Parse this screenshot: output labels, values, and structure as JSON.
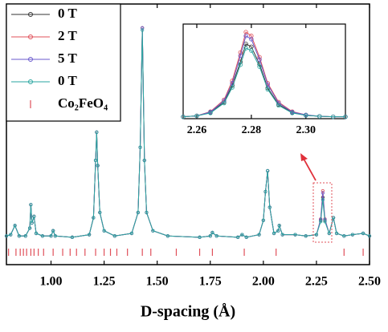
{
  "chart_data": [
    {
      "type": "line",
      "xlabel": "D-spacing (Å)",
      "xlim": [
        0.79,
        2.5
      ],
      "ylim": [
        0,
        100
      ],
      "xticks": [
        {
          "value": 1.0,
          "label": "1.00"
        },
        {
          "value": 1.25,
          "label": "1.25"
        },
        {
          "value": 1.5,
          "label": "1.50"
        },
        {
          "value": 1.75,
          "label": "1.75"
        },
        {
          "value": 2.0,
          "label": "2.00"
        },
        {
          "value": 2.25,
          "label": "2.25"
        },
        {
          "value": 2.5,
          "label": "2.50"
        }
      ],
      "legend": "upper left",
      "x": [
        0.79,
        0.81,
        0.83,
        0.85,
        0.88,
        0.9,
        0.905,
        0.91,
        0.92,
        0.93,
        0.96,
        1.0,
        1.01,
        1.02,
        1.1,
        1.18,
        1.2,
        1.21,
        1.215,
        1.22,
        1.23,
        1.25,
        1.3,
        1.38,
        1.41,
        1.42,
        1.43,
        1.44,
        1.45,
        1.48,
        1.55,
        1.7,
        1.75,
        1.76,
        1.78,
        1.88,
        1.9,
        1.92,
        1.98,
        2.0,
        2.01,
        2.02,
        2.03,
        2.05,
        2.07,
        2.075,
        2.09,
        2.15,
        2.2,
        2.25,
        2.27,
        2.28,
        2.29,
        2.31,
        2.33,
        2.345,
        2.38,
        2.42,
        2.47,
        2.5
      ],
      "series": [
        {
          "name": "0 T",
          "color": "#333333",
          "values": [
            11,
            11.5,
            15,
            11,
            11,
            14,
            23,
            16,
            18.5,
            12,
            11,
            11,
            13,
            11,
            10.5,
            11.5,
            18,
            40,
            50.8,
            38,
            20,
            13,
            11,
            12,
            20,
            45,
            90.8,
            40,
            20,
            13,
            11,
            10.5,
            11,
            12.3,
            11,
            10.5,
            11.5,
            10.5,
            11.5,
            17,
            28,
            36,
            22,
            12,
            13,
            15,
            11.5,
            11.5,
            11,
            11.5,
            17,
            25.8,
            17,
            12,
            18,
            12,
            11,
            11.5,
            12,
            11
          ]
        },
        {
          "name": "2 T",
          "color": "#e0505a",
          "values": [
            11,
            11.5,
            15,
            11,
            11,
            14,
            23,
            16,
            18.5,
            12,
            11,
            11,
            13,
            11,
            10.5,
            11.5,
            18,
            40,
            50.8,
            38,
            20,
            13,
            11,
            12,
            20,
            45,
            90.8,
            40,
            20,
            13,
            11,
            10.5,
            11,
            12.3,
            11,
            10.5,
            11.5,
            10.5,
            11.5,
            17,
            28,
            36,
            22,
            12,
            13,
            15,
            11.5,
            11.5,
            11,
            11.5,
            17.5,
            28.3,
            17.5,
            12,
            18,
            12,
            11,
            11.5,
            12,
            11
          ]
        },
        {
          "name": "5 T",
          "color": "#6a5acd",
          "values": [
            11,
            11.5,
            15,
            11,
            11,
            14,
            23,
            16,
            18.5,
            12,
            11,
            11,
            13,
            11,
            10.5,
            11.5,
            18,
            40,
            50.8,
            38,
            20,
            13,
            11,
            12,
            20,
            45,
            90.8,
            40,
            20,
            13,
            11,
            10.5,
            11,
            12.3,
            11,
            10.5,
            11.5,
            10.5,
            11.5,
            17,
            28,
            36,
            22,
            12,
            13,
            15,
            11.5,
            11.5,
            11,
            11.5,
            17.3,
            27.5,
            17.3,
            12,
            18,
            12,
            11,
            11.5,
            12,
            11
          ]
        },
        {
          "name": "0 T",
          "color": "#2aa6a0",
          "values": [
            11,
            11.5,
            15,
            11,
            11,
            14,
            23,
            16,
            18.5,
            12,
            11,
            11,
            13,
            11,
            10.5,
            11.5,
            18,
            40,
            50.8,
            38,
            20,
            13,
            11,
            12,
            20,
            45,
            90,
            40,
            20,
            13,
            11,
            10.5,
            11,
            12.3,
            11,
            10.5,
            11.5,
            10.5,
            11.5,
            17,
            28,
            36,
            22,
            12,
            13,
            15,
            11.5,
            11.5,
            11,
            11.5,
            16.5,
            24.9,
            16.5,
            12,
            18,
            12,
            11,
            11.5,
            12,
            11
          ]
        }
      ],
      "reflections": {
        "name": "Co₂FeO₄",
        "color": "#e0505a",
        "x": [
          0.8,
          0.835,
          0.855,
          0.87,
          0.885,
          0.905,
          0.92,
          0.94,
          0.965,
          1.01,
          1.055,
          1.09,
          1.12,
          1.16,
          1.21,
          1.25,
          1.28,
          1.31,
          1.36,
          1.43,
          1.47,
          1.59,
          1.7,
          1.76,
          1.91,
          2.06,
          2.38,
          2.47
        ]
      }
    },
    {
      "type": "line",
      "xlim": [
        2.255,
        2.3145
      ],
      "ylim": [
        10,
        30
      ],
      "xticks": [
        {
          "value": 2.26,
          "label": "2.26"
        },
        {
          "value": 2.28,
          "label": "2.28"
        },
        {
          "value": 2.3,
          "label": "2.30"
        }
      ],
      "x": [
        2.255,
        2.26,
        2.265,
        2.27,
        2.273,
        2.276,
        2.278,
        2.28,
        2.283,
        2.286,
        2.29,
        2.295,
        2.3,
        2.305,
        2.31,
        2.3145
      ],
      "series": [
        {
          "color": "#333333",
          "values": [
            10.4,
            10.6,
            11.3,
            13.5,
            17,
            22,
            25.8,
            25.2,
            21.5,
            16.5,
            13,
            11.3,
            10.7,
            10.5,
            10.4,
            10.4
          ]
        },
        {
          "color": "#e0505a",
          "values": [
            10.4,
            10.6,
            11.5,
            14,
            18,
            24,
            28.3,
            27.5,
            23,
            17.5,
            13.5,
            11.5,
            10.8,
            10.5,
            10.4,
            10.4
          ]
        },
        {
          "color": "#6a5acd",
          "values": [
            10.4,
            10.6,
            11.4,
            13.8,
            17.5,
            23.3,
            27.5,
            26.8,
            22.5,
            17.2,
            13.3,
            11.4,
            10.8,
            10.5,
            10.4,
            10.4
          ]
        },
        {
          "color": "#2aa6a0",
          "values": [
            10.4,
            10.6,
            11.2,
            13.3,
            16.6,
            21.4,
            24.9,
            24.4,
            21,
            16.2,
            12.8,
            11.2,
            10.7,
            10.5,
            10.4,
            10.4
          ]
        }
      ]
    }
  ]
}
